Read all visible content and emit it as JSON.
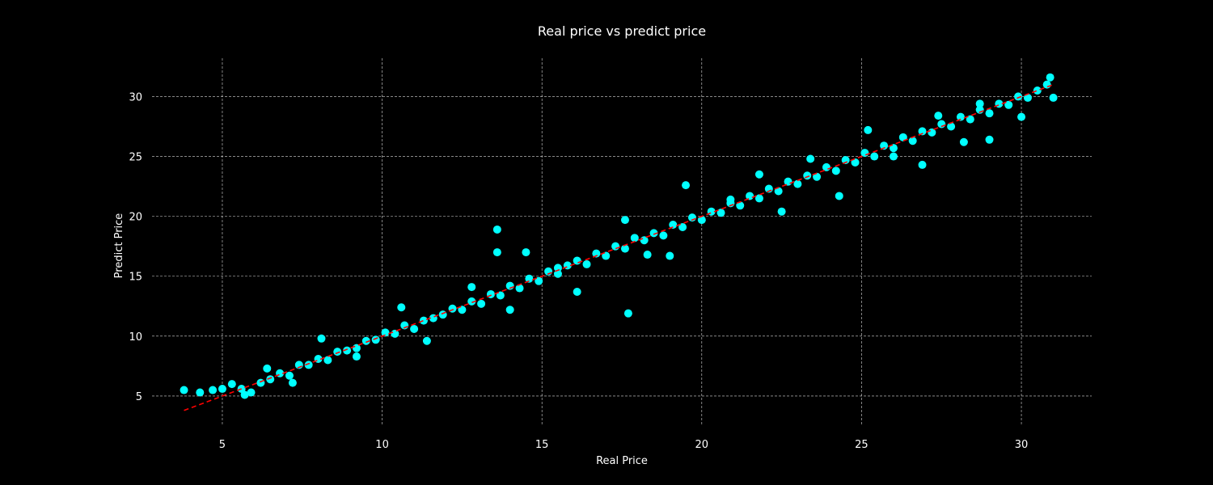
{
  "chart_data": {
    "type": "scatter",
    "title": "Real price vs predict price",
    "xlabel": "Real Price",
    "ylabel": "Predict Price",
    "xlim": [
      2.8,
      32.2
    ],
    "ylim": [
      2.5,
      33.2
    ],
    "xticks": [
      5,
      10,
      15,
      20,
      25,
      30
    ],
    "yticks": [
      5,
      10,
      15,
      20,
      25,
      30
    ],
    "grid": true,
    "background_color": "#000000",
    "point_color": "#00ffff",
    "reference_line": {
      "style": "dashed",
      "color": "#ff0000",
      "x": [
        3.8,
        31.0
      ],
      "y": [
        3.8,
        31.0
      ]
    },
    "series": [
      {
        "values": [
          {
            "x": 3.8,
            "y": 5.5
          },
          {
            "x": 4.3,
            "y": 5.3
          },
          {
            "x": 4.7,
            "y": 5.5
          },
          {
            "x": 5.0,
            "y": 5.6
          },
          {
            "x": 5.3,
            "y": 6.0
          },
          {
            "x": 5.6,
            "y": 5.6
          },
          {
            "x": 5.9,
            "y": 5.3
          },
          {
            "x": 6.2,
            "y": 6.1
          },
          {
            "x": 6.5,
            "y": 6.4
          },
          {
            "x": 6.8,
            "y": 6.9
          },
          {
            "x": 7.1,
            "y": 6.7
          },
          {
            "x": 7.4,
            "y": 7.6
          },
          {
            "x": 7.7,
            "y": 7.6
          },
          {
            "x": 8.0,
            "y": 8.1
          },
          {
            "x": 8.3,
            "y": 8.0
          },
          {
            "x": 8.6,
            "y": 8.7
          },
          {
            "x": 8.9,
            "y": 8.8
          },
          {
            "x": 9.2,
            "y": 9.0
          },
          {
            "x": 9.5,
            "y": 9.6
          },
          {
            "x": 9.8,
            "y": 9.7
          },
          {
            "x": 10.1,
            "y": 10.3
          },
          {
            "x": 10.4,
            "y": 10.2
          },
          {
            "x": 10.7,
            "y": 10.9
          },
          {
            "x": 11.0,
            "y": 10.6
          },
          {
            "x": 11.3,
            "y": 11.3
          },
          {
            "x": 11.6,
            "y": 11.5
          },
          {
            "x": 11.9,
            "y": 11.8
          },
          {
            "x": 12.2,
            "y": 12.3
          },
          {
            "x": 12.5,
            "y": 12.2
          },
          {
            "x": 12.8,
            "y": 12.9
          },
          {
            "x": 13.1,
            "y": 12.7
          },
          {
            "x": 13.4,
            "y": 13.5
          },
          {
            "x": 13.7,
            "y": 13.4
          },
          {
            "x": 14.0,
            "y": 14.2
          },
          {
            "x": 14.3,
            "y": 14.0
          },
          {
            "x": 14.6,
            "y": 14.8
          },
          {
            "x": 14.9,
            "y": 14.6
          },
          {
            "x": 15.2,
            "y": 15.4
          },
          {
            "x": 15.5,
            "y": 15.2
          },
          {
            "x": 15.8,
            "y": 15.9
          },
          {
            "x": 16.1,
            "y": 16.3
          },
          {
            "x": 16.4,
            "y": 16.0
          },
          {
            "x": 16.7,
            "y": 16.9
          },
          {
            "x": 17.0,
            "y": 16.7
          },
          {
            "x": 17.3,
            "y": 17.5
          },
          {
            "x": 17.6,
            "y": 17.3
          },
          {
            "x": 17.9,
            "y": 18.2
          },
          {
            "x": 18.2,
            "y": 18.0
          },
          {
            "x": 18.5,
            "y": 18.6
          },
          {
            "x": 18.8,
            "y": 18.4
          },
          {
            "x": 19.1,
            "y": 19.3
          },
          {
            "x": 19.4,
            "y": 19.1
          },
          {
            "x": 19.7,
            "y": 19.9
          },
          {
            "x": 20.0,
            "y": 19.7
          },
          {
            "x": 20.3,
            "y": 20.4
          },
          {
            "x": 20.6,
            "y": 20.3
          },
          {
            "x": 20.9,
            "y": 21.1
          },
          {
            "x": 21.2,
            "y": 20.9
          },
          {
            "x": 21.5,
            "y": 21.7
          },
          {
            "x": 21.8,
            "y": 21.5
          },
          {
            "x": 22.1,
            "y": 22.3
          },
          {
            "x": 22.4,
            "y": 22.1
          },
          {
            "x": 22.7,
            "y": 22.9
          },
          {
            "x": 23.0,
            "y": 22.7
          },
          {
            "x": 23.3,
            "y": 23.4
          },
          {
            "x": 23.6,
            "y": 23.3
          },
          {
            "x": 23.9,
            "y": 24.1
          },
          {
            "x": 24.2,
            "y": 23.8
          },
          {
            "x": 24.5,
            "y": 24.7
          },
          {
            "x": 24.8,
            "y": 24.5
          },
          {
            "x": 25.1,
            "y": 25.3
          },
          {
            "x": 25.4,
            "y": 25.0
          },
          {
            "x": 25.7,
            "y": 25.9
          },
          {
            "x": 26.0,
            "y": 25.7
          },
          {
            "x": 26.3,
            "y": 26.6
          },
          {
            "x": 26.6,
            "y": 26.3
          },
          {
            "x": 26.9,
            "y": 27.1
          },
          {
            "x": 27.2,
            "y": 27.0
          },
          {
            "x": 27.5,
            "y": 27.7
          },
          {
            "x": 27.8,
            "y": 27.5
          },
          {
            "x": 28.1,
            "y": 28.3
          },
          {
            "x": 28.4,
            "y": 28.1
          },
          {
            "x": 28.7,
            "y": 28.9
          },
          {
            "x": 29.0,
            "y": 28.6
          },
          {
            "x": 29.3,
            "y": 29.4
          },
          {
            "x": 29.6,
            "y": 29.3
          },
          {
            "x": 29.9,
            "y": 30.0
          },
          {
            "x": 30.2,
            "y": 29.9
          },
          {
            "x": 30.5,
            "y": 30.5
          },
          {
            "x": 30.8,
            "y": 31.0
          },
          {
            "x": 30.9,
            "y": 31.6
          },
          {
            "x": 31.0,
            "y": 29.9
          },
          {
            "x": 17.7,
            "y": 11.9
          },
          {
            "x": 13.6,
            "y": 18.9
          },
          {
            "x": 13.6,
            "y": 17.0
          },
          {
            "x": 24.3,
            "y": 21.7
          },
          {
            "x": 25.2,
            "y": 27.2
          },
          {
            "x": 26.0,
            "y": 25.0
          },
          {
            "x": 26.9,
            "y": 24.3
          },
          {
            "x": 28.2,
            "y": 26.2
          },
          {
            "x": 29.0,
            "y": 26.4
          },
          {
            "x": 30.0,
            "y": 28.3
          },
          {
            "x": 21.8,
            "y": 23.5
          },
          {
            "x": 22.5,
            "y": 20.4
          },
          {
            "x": 19.5,
            "y": 22.6
          },
          {
            "x": 19.0,
            "y": 16.7
          },
          {
            "x": 17.6,
            "y": 19.7
          },
          {
            "x": 16.1,
            "y": 13.7
          },
          {
            "x": 14.5,
            "y": 17.0
          },
          {
            "x": 12.8,
            "y": 14.1
          },
          {
            "x": 11.4,
            "y": 9.6
          },
          {
            "x": 10.6,
            "y": 12.4
          },
          {
            "x": 9.2,
            "y": 8.3
          },
          {
            "x": 8.1,
            "y": 9.8
          },
          {
            "x": 7.2,
            "y": 6.1
          },
          {
            "x": 6.4,
            "y": 7.3
          },
          {
            "x": 5.7,
            "y": 5.1
          },
          {
            "x": 20.9,
            "y": 21.4
          },
          {
            "x": 23.4,
            "y": 24.8
          },
          {
            "x": 27.4,
            "y": 28.4
          },
          {
            "x": 28.7,
            "y": 29.4
          },
          {
            "x": 14.0,
            "y": 12.2
          },
          {
            "x": 15.5,
            "y": 15.7
          },
          {
            "x": 18.3,
            "y": 16.8
          }
        ]
      }
    ]
  }
}
